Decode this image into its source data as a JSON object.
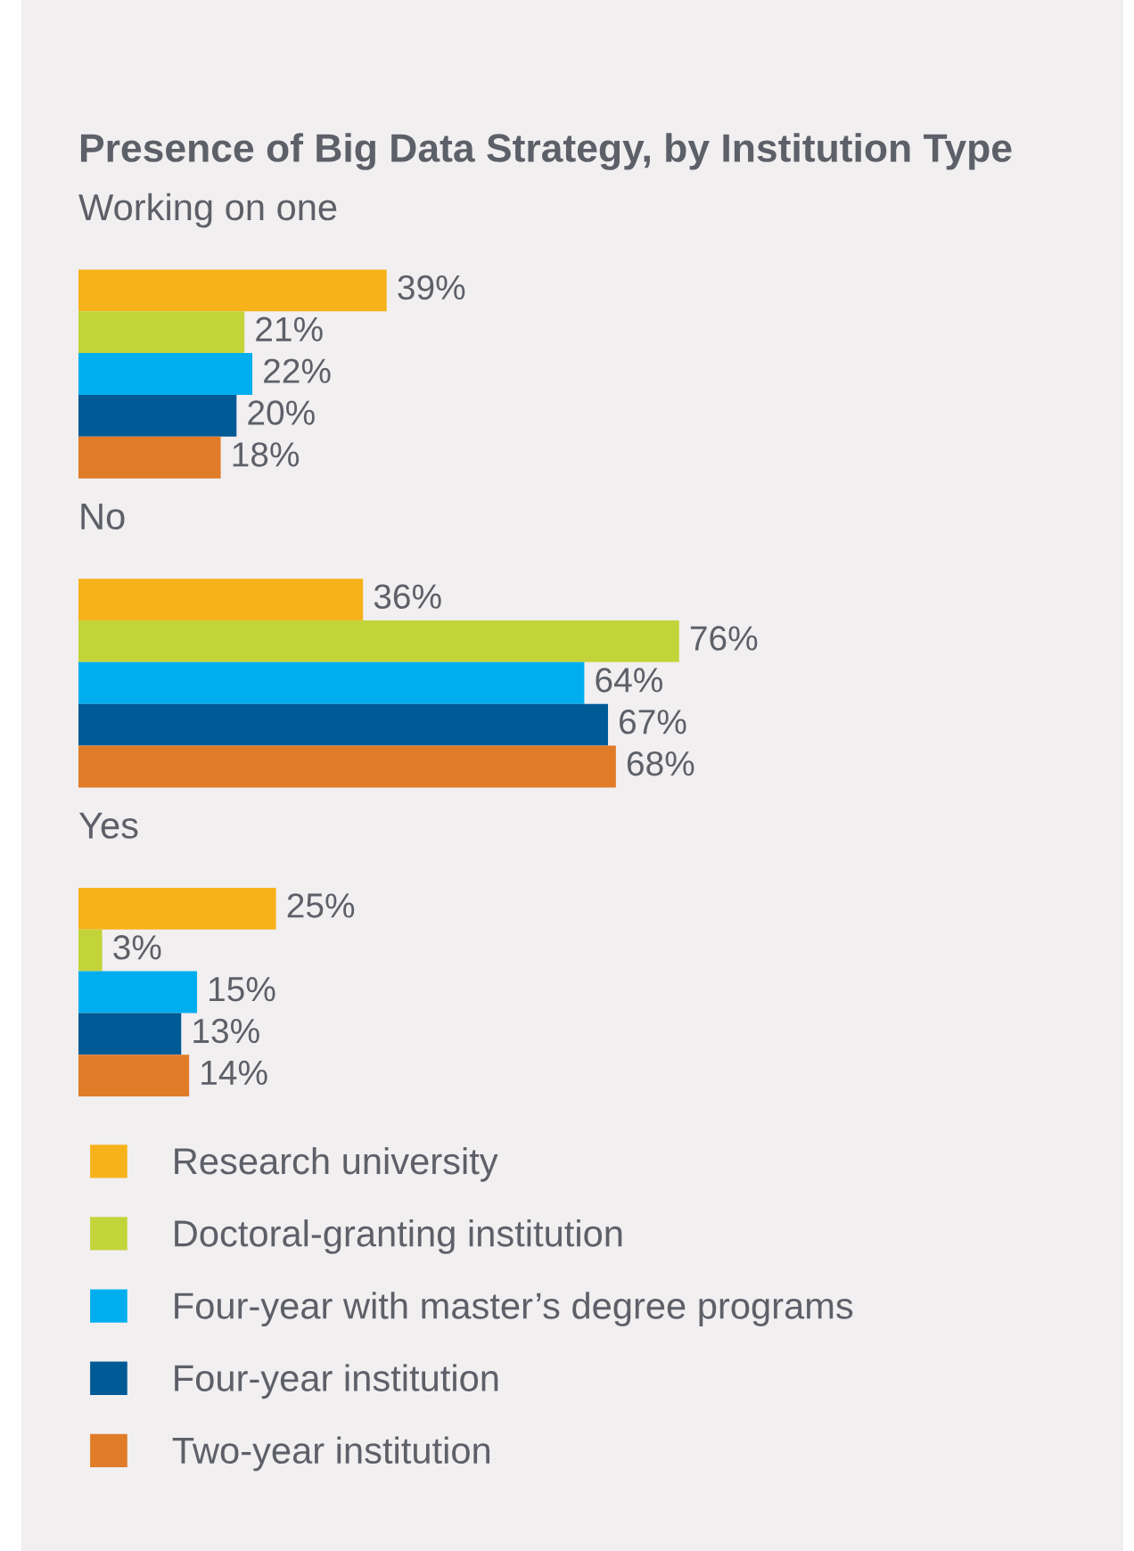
{
  "chart_data": {
    "type": "bar",
    "orientation": "horizontal",
    "title": "Presence of Big Data Strategy, by Institution Type",
    "categories": [
      "Working on one",
      "No",
      "Yes"
    ],
    "series": [
      {
        "name": "Research university",
        "color": "#f7b21b",
        "values": [
          39,
          36,
          25
        ],
        "value_labels": [
          "39%",
          "36%",
          "25%"
        ]
      },
      {
        "name": "Doctoral-granting institution",
        "color": "#c3d43a",
        "values": [
          21,
          76,
          3
        ],
        "value_labels": [
          "21%",
          "76%",
          "3%"
        ]
      },
      {
        "name": "Four-year with master’s degree programs",
        "color": "#00aeef",
        "values": [
          22,
          64,
          15
        ],
        "value_labels": [
          "22%",
          "64%",
          "15%"
        ]
      },
      {
        "name": "Four-year institution",
        "color": "#005a96",
        "values": [
          20,
          67,
          13
        ],
        "value_labels": [
          "20%",
          "67%",
          "13%"
        ]
      },
      {
        "name": "Two-year institution",
        "color": "#e07b28",
        "values": [
          18,
          68,
          14
        ],
        "value_labels": [
          "18%",
          "68%",
          "14%"
        ]
      }
    ],
    "legend": "bottom",
    "tick_labels": false
  }
}
